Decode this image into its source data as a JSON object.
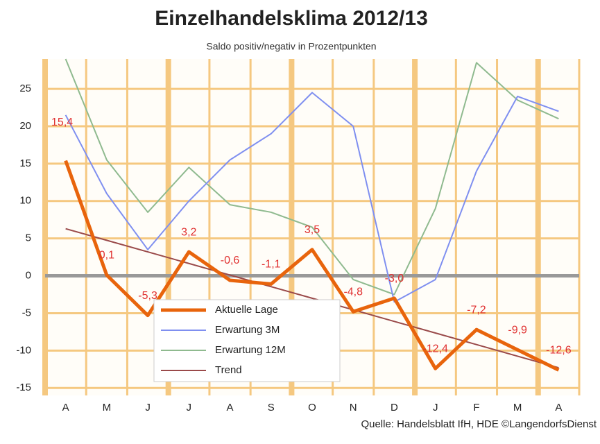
{
  "chart_data": {
    "type": "line",
    "title": "Einzelhandelsklima 2012/13",
    "subtitle": "Saldo positiv/negativ in Prozentpunkten",
    "source": "Quelle: Handelsblatt IfH, HDE ©LangendorfsDienst",
    "categories": [
      "A",
      "M",
      "J",
      "J",
      "A",
      "S",
      "O",
      "N",
      "D",
      "J",
      "F",
      "M",
      "A"
    ],
    "series": [
      {
        "name": "Aktuelle Lage",
        "color": "#e8640c",
        "values": [
          15.4,
          0.1,
          -5.3,
          3.2,
          -0.6,
          -1.1,
          3.5,
          -4.8,
          -3.0,
          -12.4,
          -7.2,
          -9.9,
          -12.6
        ],
        "value_labels": [
          "15,4",
          "0,1",
          "-5,3",
          "3,2",
          "-0,6",
          "-1,1",
          "3,5",
          "-4,8",
          "-3,0",
          "-12,4",
          "-7,2",
          "-9,9",
          "-12,6"
        ]
      },
      {
        "name": "Erwartung 3M",
        "color": "#7f8ff0",
        "values": [
          21.5,
          11,
          3.5,
          10,
          15.5,
          19,
          24.5,
          20,
          -3.5,
          -0.5,
          14,
          24,
          22
        ]
      },
      {
        "name": "Erwartung 12M",
        "color": "#8fba8f",
        "values": [
          29,
          15.5,
          8.5,
          14.5,
          9.5,
          8.5,
          6.5,
          -0.5,
          -2.5,
          9,
          28.5,
          23.5,
          21
        ]
      },
      {
        "name": "Trend",
        "color": "#9a4a4a",
        "values": [
          6.3,
          4.75,
          3.2,
          1.65,
          0.1,
          -1.45,
          -3.0,
          -4.55,
          -6.1,
          -7.65,
          -9.2,
          -10.75,
          -12.3
        ]
      }
    ],
    "ylim": [
      -16,
      29
    ],
    "yticks": [
      -15,
      -10,
      -5,
      0,
      5,
      10,
      15,
      20,
      25
    ],
    "grid": true
  }
}
